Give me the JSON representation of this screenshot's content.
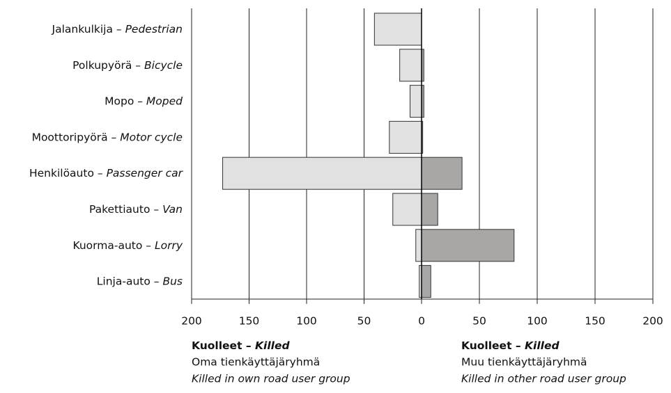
{
  "chart_data": [
    {
      "type": "bar",
      "orientation": "horizontal",
      "label": [
        "Kuolleet –",
        "Killed"
      ],
      "subtitle": "Oma tienkäyttäjäryhmä",
      "subtitle_en": "Killed in own road user group",
      "categories": [
        [
          "Jalankulkija –",
          "Pedestrian"
        ],
        [
          "Polkupyörä –",
          "Bicycle"
        ],
        [
          "Mopo –",
          "Moped"
        ],
        [
          "Moottoripyörä –",
          "Motor cycle"
        ],
        [
          "Henkilöauto –",
          "Passenger car"
        ],
        [
          "Pakettiauto –",
          "Van"
        ],
        [
          "Kuorma-auto –",
          "Lorry"
        ],
        [
          "Linja-auto –",
          "Bus"
        ]
      ],
      "values": [
        41,
        19,
        10,
        28,
        173,
        25,
        5,
        2
      ],
      "color": "#e1e1e1",
      "xlim": [
        200,
        0
      ],
      "xticks": [
        200,
        150,
        100,
        50
      ],
      "grid": true
    },
    {
      "type": "bar",
      "orientation": "horizontal",
      "label": [
        "Kuolleet –",
        "Killed"
      ],
      "subtitle": "Muu tienkäyttäjäryhmä",
      "subtitle_en": "Killed in other road user group",
      "values": [
        0,
        2,
        2,
        1,
        35,
        14,
        80,
        8
      ],
      "color": "#a9a7a5",
      "xlim": [
        0,
        200
      ],
      "xticks": [
        0,
        50,
        100,
        150,
        200
      ],
      "grid": true
    }
  ]
}
